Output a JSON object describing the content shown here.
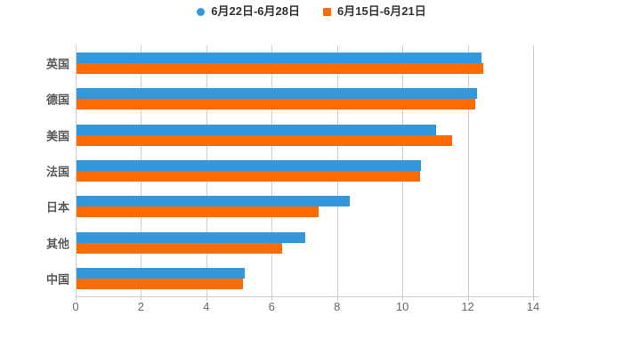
{
  "chart_data": {
    "type": "bar",
    "orientation": "horizontal",
    "title": "",
    "xlabel": "",
    "ylabel": "",
    "categories": [
      "英国",
      "德国",
      "美国",
      "法国",
      "日本",
      "其他",
      "中国"
    ],
    "series": [
      {
        "name": "6月22日-6月28日",
        "marker": "circle",
        "color": "#3398db",
        "values": [
          12.4,
          12.25,
          11.0,
          10.55,
          8.35,
          7.0,
          5.15
        ]
      },
      {
        "name": "6月15日-6月21日",
        "marker": "square",
        "color": "#ff6b00",
        "values": [
          12.45,
          12.2,
          11.5,
          10.5,
          7.4,
          6.3,
          5.1
        ]
      }
    ],
    "xlim": [
      0,
      14
    ],
    "x_ticks": [
      0,
      2,
      4,
      6,
      8,
      10,
      12,
      14
    ],
    "grid": true,
    "legend_position": "top",
    "colors": {
      "background": "#ffffff",
      "gridline": "#cccccc",
      "axis_line": "#cccccc",
      "legend_text": "#333333",
      "y_tick_text": "#595959",
      "x_tick_text": "#666666"
    }
  }
}
